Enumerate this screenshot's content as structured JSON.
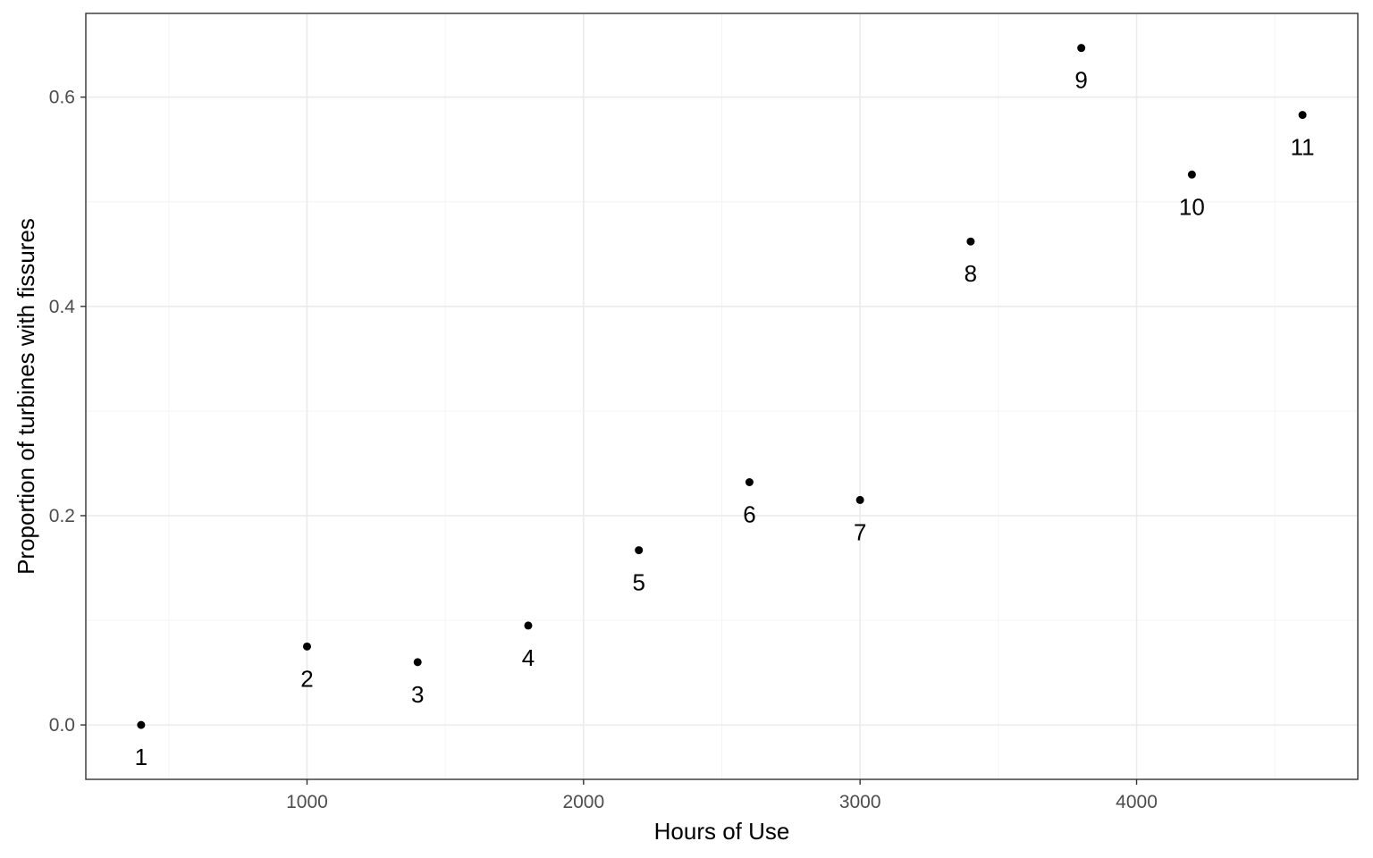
{
  "chart_data": {
    "type": "scatter",
    "title": "",
    "xlabel": "Hours of Use",
    "ylabel": "Proportion of turbines with fissures",
    "xlim": [
      200,
      4800
    ],
    "ylim": [
      -0.052,
      0.68
    ],
    "x_major_ticks": [
      1000,
      2000,
      3000,
      4000
    ],
    "x_major_tick_labels": [
      "1000",
      "2000",
      "3000",
      "4000"
    ],
    "x_minor_ticks": [
      500,
      1500,
      2500,
      3500,
      4500
    ],
    "y_major_ticks": [
      0.0,
      0.2,
      0.4,
      0.6
    ],
    "y_major_tick_labels": [
      "0.0",
      "0.2",
      "0.4",
      "0.6"
    ],
    "y_minor_ticks": [
      0.1,
      0.3,
      0.5
    ],
    "grid": true,
    "legend": "none",
    "series": [
      {
        "name": "turbines",
        "x": [
          400,
          1000,
          1400,
          1800,
          2200,
          2600,
          3000,
          3400,
          3800,
          4200,
          4600
        ],
        "y": [
          0.0,
          0.075,
          0.06,
          0.095,
          0.167,
          0.232,
          0.215,
          0.462,
          0.647,
          0.526,
          0.583
        ],
        "labels": [
          "1",
          "2",
          "3",
          "4",
          "5",
          "6",
          "7",
          "8",
          "9",
          "10",
          "11"
        ]
      }
    ],
    "colors": {
      "point": "#000000",
      "grid_major": "#ebebeb",
      "grid_minor": "#f4f4f4",
      "panel_border": "#333333",
      "background": "#ffffff"
    }
  }
}
